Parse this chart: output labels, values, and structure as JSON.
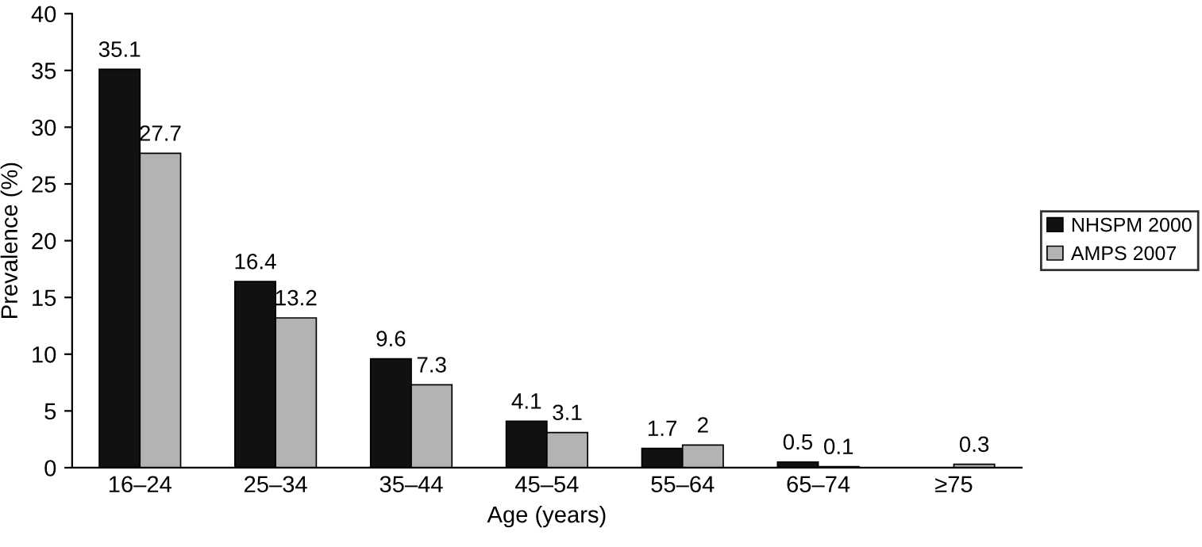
{
  "chart_data": {
    "type": "bar",
    "xlabel": "Age (years)",
    "ylabel": "Prevalence (%)",
    "categories": [
      "16–24",
      "25–34",
      "35–44",
      "45–54",
      "55–64",
      "65–74",
      "≥75"
    ],
    "series": [
      {
        "name": "NHSPM 2000",
        "color": "#111111",
        "values": [
          35.1,
          16.4,
          9.6,
          4.1,
          1.7,
          0.5,
          null
        ],
        "value_labels": [
          "35.1",
          "16.4",
          "9.6",
          "4.1",
          "1.7",
          "0.5",
          null
        ]
      },
      {
        "name": "AMPS 2007",
        "color": "#b3b3b3",
        "values": [
          27.7,
          13.2,
          7.3,
          3.1,
          2,
          0.1,
          0.3
        ],
        "value_labels": [
          "27.7",
          "13.2",
          "7.3",
          "3.1",
          "2",
          "0.1",
          "0.3"
        ]
      }
    ],
    "ylim": [
      0,
      40
    ],
    "yticks": [
      0,
      5,
      10,
      15,
      20,
      25,
      30,
      35,
      40
    ],
    "grid": false,
    "legend": "right"
  }
}
